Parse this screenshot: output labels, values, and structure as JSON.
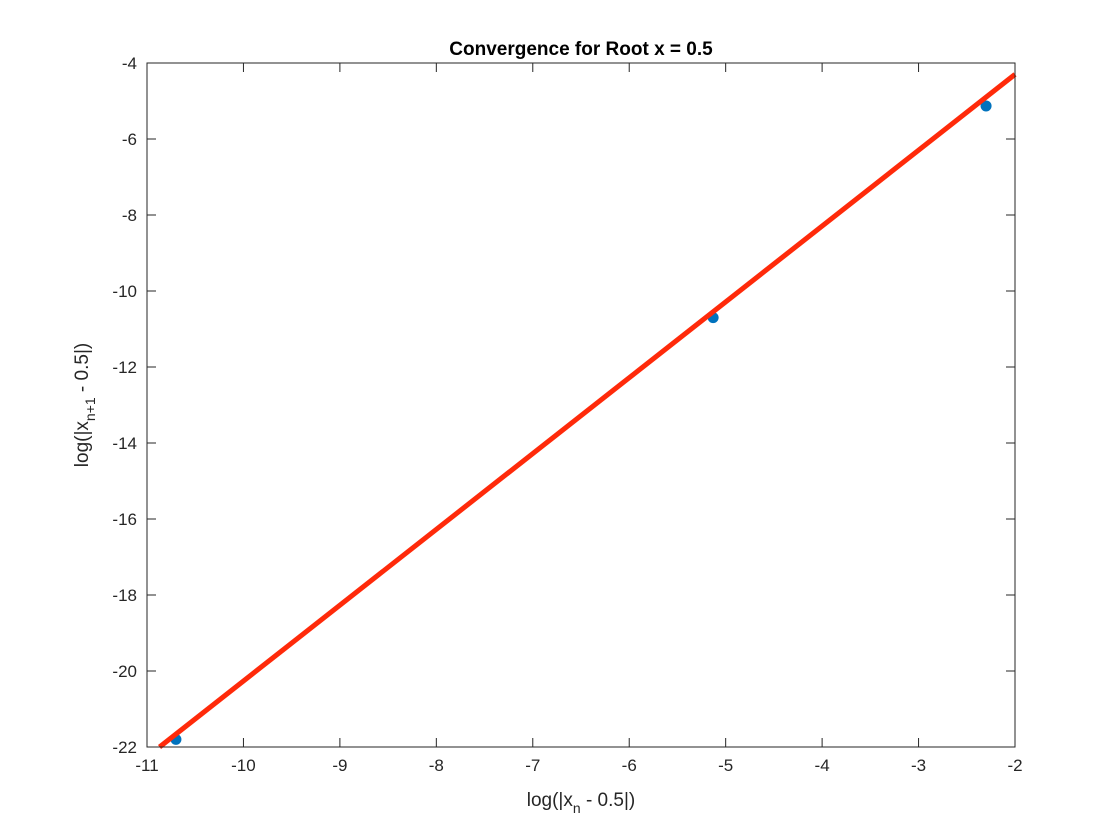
{
  "chart_data": {
    "type": "scatter",
    "title": "Convergence for Root x = 0.5",
    "xlabel": {
      "pre": "log(|x",
      "sub": "n",
      "post": " - 0.5|)"
    },
    "ylabel": {
      "pre": "log(|x",
      "sub": "n+1",
      "post": " - 0.5|)"
    },
    "xlim": [
      -11,
      -2
    ],
    "ylim": [
      -22,
      -4
    ],
    "xticks": [
      -11,
      -10,
      -9,
      -8,
      -7,
      -6,
      -5,
      -4,
      -3,
      -2
    ],
    "yticks": [
      -22,
      -20,
      -18,
      -16,
      -14,
      -12,
      -10,
      -8,
      -6,
      -4
    ],
    "grid": false,
    "series": [
      {
        "kind": "points",
        "color": "#0072BD",
        "x": [
          -10.7,
          -5.13,
          -2.3
        ],
        "y": [
          -21.8,
          -10.7,
          -5.13
        ]
      },
      {
        "kind": "line",
        "color": "#FF2A0A",
        "x": [
          -10.87,
          -2.0
        ],
        "y": [
          -22.0,
          -4.3
        ]
      }
    ]
  }
}
